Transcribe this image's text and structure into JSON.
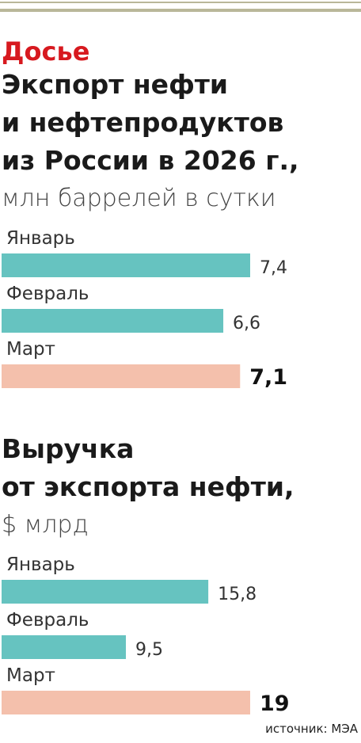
{
  "kicker": "Досье",
  "source": "источник: МЭА",
  "chart_data": [
    {
      "type": "bar",
      "title": [
        "Экспорт нефти",
        "и нефтепродуктов",
        "из России в 2026 г.,"
      ],
      "subtitle": "млн баррелей в сутки",
      "categories": [
        "Январь",
        "Февраль",
        "Март"
      ],
      "values": [
        7.4,
        6.6,
        7.1
      ],
      "value_labels": [
        "7,4",
        "6,6",
        "7,1"
      ],
      "colors": [
        "#66c3c0",
        "#66c3c0",
        "#f4c0ac"
      ]
    },
    {
      "type": "bar",
      "title": [
        "Выручка",
        "от экспорта нефти,"
      ],
      "subtitle": "$ млрд",
      "categories": [
        "Январь",
        "Февраль",
        "Март"
      ],
      "values": [
        15.8,
        9.5,
        19
      ],
      "value_labels": [
        "15,8",
        "9,5",
        "19"
      ],
      "colors": [
        "#66c3c0",
        "#66c3c0",
        "#f4c0ac"
      ]
    }
  ]
}
